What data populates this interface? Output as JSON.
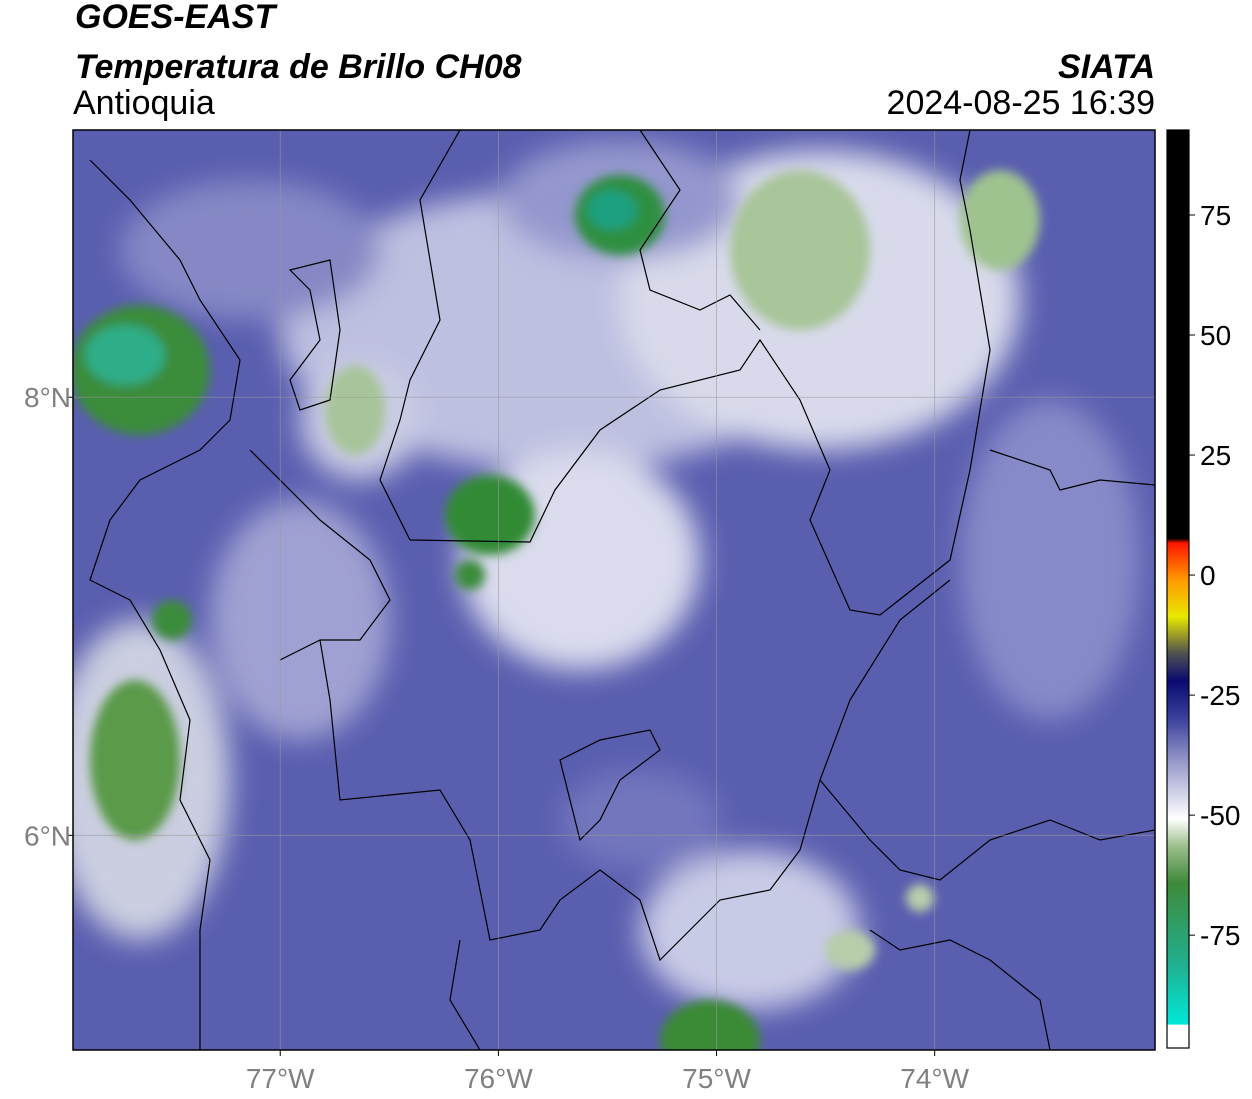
{
  "header": {
    "satellite": "GOES-EAST",
    "product": "Temperatura de Brillo CH08",
    "region": "Antioquia",
    "source": "SIATA",
    "datetime": "2024-08-25 16:39"
  },
  "map": {
    "lonlim": [
      -77.95,
      -72.99
    ],
    "latlim": [
      5.02,
      9.22
    ],
    "lon_ticks": [
      {
        "value": -77,
        "label": "77°W"
      },
      {
        "value": -76,
        "label": "76°W"
      },
      {
        "value": -75,
        "label": "75°W"
      },
      {
        "value": -74,
        "label": "74°W"
      }
    ],
    "lat_ticks": [
      {
        "value": 8,
        "label": "8°N"
      },
      {
        "value": 6,
        "label": "6°N"
      }
    ]
  },
  "colorbar": {
    "lim": [
      -98.5,
      92.7
    ],
    "ticks": [
      -75,
      -50,
      -25,
      0,
      25,
      50,
      75
    ]
  }
}
